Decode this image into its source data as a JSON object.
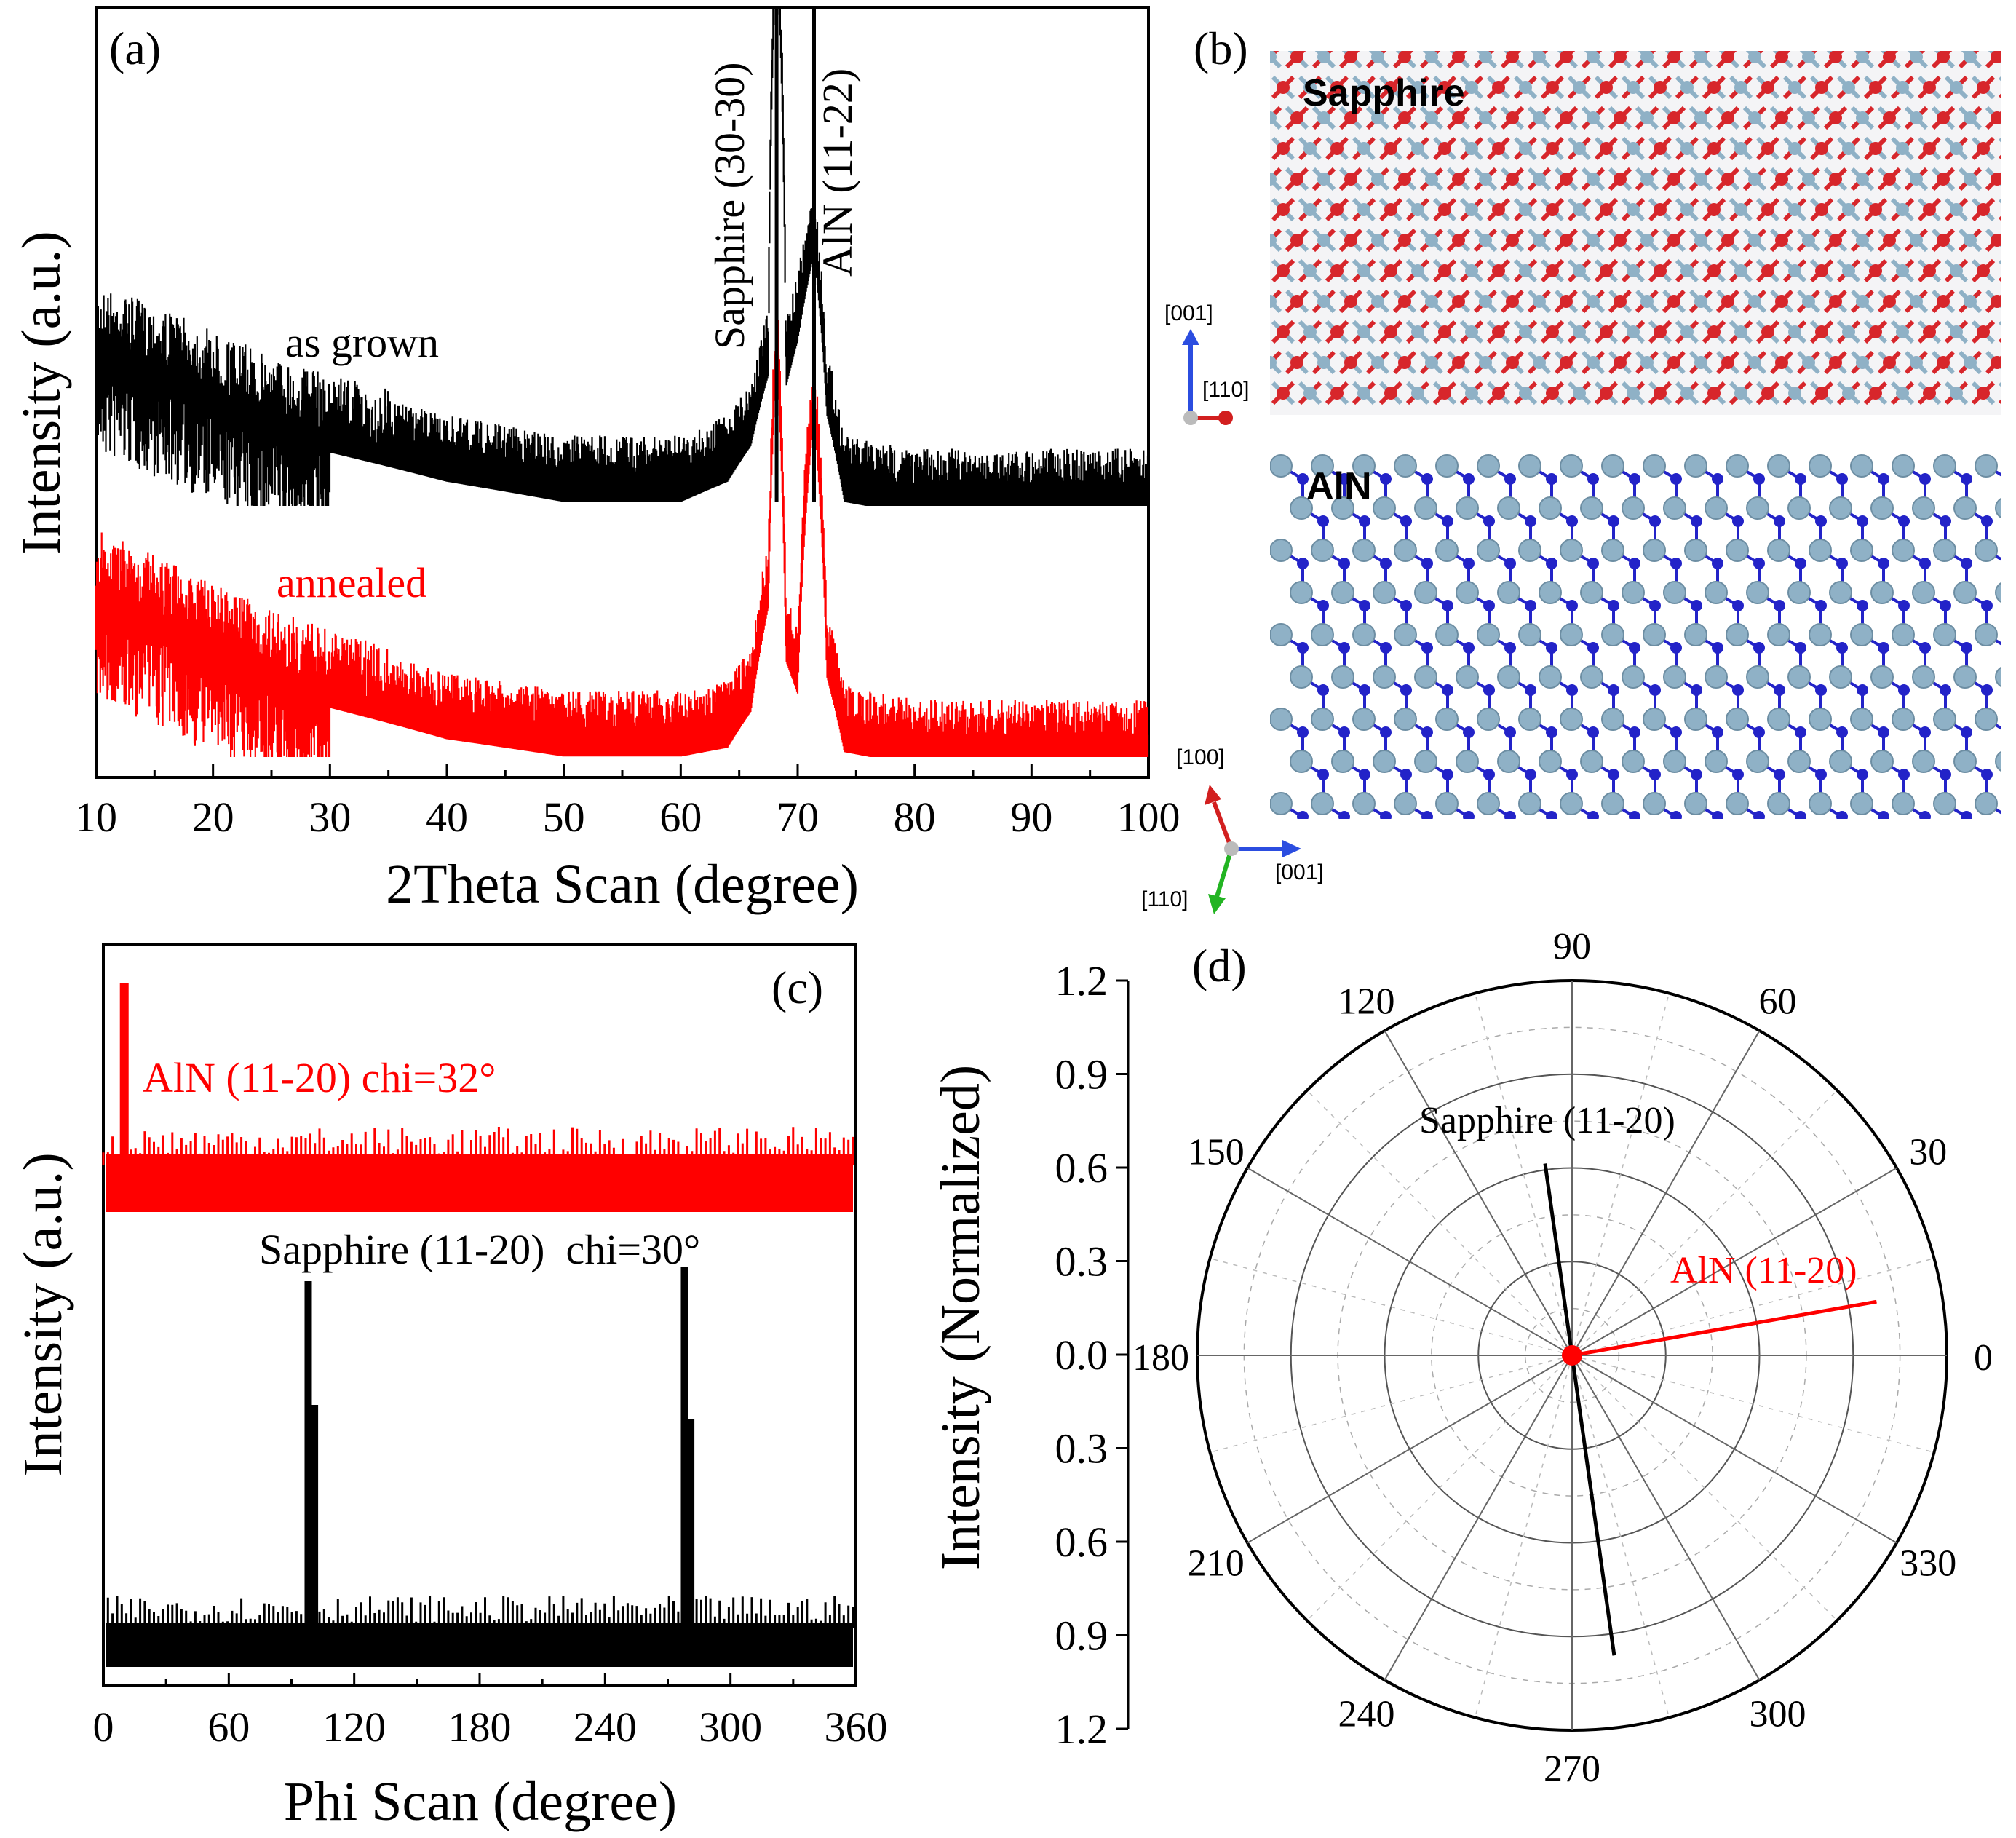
{
  "colors": {
    "black": "#000000",
    "red": "#ff0000",
    "sapphire_O": "#d7262b",
    "al_atom": "#8fb1c6",
    "n_atom": "#2323c8",
    "axis_green": "#22b422"
  },
  "panel_a": {
    "label": "(a)",
    "ylabel": "Intensity (a.u.)",
    "xlabel": "2Theta Scan (degree)",
    "peak_label_sapphire": "Sapphire (30-30)",
    "peak_label_aln": "AlN (11-22)",
    "series_label_1": "as grown",
    "series_label_2": "annealed"
  },
  "panel_b": {
    "label": "(b)",
    "top_label": "Sapphire",
    "bottom_label": "AlN",
    "axes_top": {
      "up": "[001]",
      "right": "[110]"
    },
    "axes_bottom": {
      "up": "[100]",
      "right": "[001]",
      "down": "[110]"
    }
  },
  "panel_c": {
    "label": "(c)",
    "ylabel": "Intensity (a.u.)",
    "xlabel": "Phi Scan (degree)",
    "series_label_1": "AlN (11-20) chi=32°",
    "series_label_2": "Sapphire (11-20)  chi=30°"
  },
  "panel_d": {
    "label": "(d)",
    "ylabel": "Intensity (Normalized)",
    "label_sapphire": "Sapphire (11-20)",
    "label_aln": "AlN (11-20)"
  },
  "chart_data": [
    {
      "type": "line",
      "panel": "a",
      "xlabel": "2Theta Scan (degree)",
      "ylabel": "Intensity (a.u.)",
      "xlim": [
        10,
        100
      ],
      "xticks": [
        10,
        20,
        30,
        40,
        50,
        60,
        70,
        80,
        90,
        100
      ],
      "y_scale": "log (arbitrary units, no tick labels)",
      "peaks": [
        {
          "name": "Sapphire (30-30)",
          "x": 68.2
        },
        {
          "name": "AlN (11-22)",
          "x": 71.4
        }
      ],
      "series": [
        {
          "name": "as grown",
          "color": "#000000",
          "x": [
            10,
            15,
            20,
            25,
            30,
            40,
            50,
            60,
            64,
            66,
            67.5,
            68.2,
            69,
            70,
            71.4,
            72.5,
            74,
            80,
            90,
            100
          ],
          "y": [
            1.0,
            0.92,
            0.82,
            0.74,
            0.68,
            0.6,
            0.55,
            0.55,
            0.6,
            0.7,
            0.95,
            6.0,
            0.9,
            1.1,
            1.6,
            0.8,
            0.55,
            0.52,
            0.52,
            0.52
          ]
        },
        {
          "name": "annealed",
          "color": "#ff0000",
          "x": [
            10,
            15,
            20,
            25,
            30,
            40,
            50,
            60,
            64,
            66,
            67.5,
            68.2,
            69,
            70,
            71.4,
            72.5,
            74,
            80,
            90,
            100
          ],
          "y": [
            1.0,
            0.9,
            0.8,
            0.72,
            0.66,
            0.58,
            0.54,
            0.54,
            0.56,
            0.65,
            1.0,
            2.8,
            0.8,
            0.7,
            2.2,
            0.75,
            0.55,
            0.52,
            0.52,
            0.52
          ]
        }
      ]
    },
    {
      "type": "line",
      "panel": "c",
      "xlabel": "Phi Scan (degree)",
      "ylabel": "Intensity (a.u.)",
      "xlim": [
        0,
        360
      ],
      "xticks": [
        0,
        60,
        120,
        180,
        240,
        300,
        360
      ],
      "series": [
        {
          "name": "AlN (11-20) chi=32°",
          "color": "#ff0000",
          "peaks_x": [
            10
          ],
          "peak_height": 1.0,
          "baseline": 0.12
        },
        {
          "name": "Sapphire (11-20)  chi=30°",
          "color": "#000000",
          "peaks_x": [
            98,
            101,
            278,
            281
          ],
          "peak_heights": [
            0.85,
            0.55,
            0.92,
            0.55
          ],
          "baseline": 0.08
        }
      ]
    },
    {
      "type": "polar",
      "panel": "d",
      "ylabel": "Intensity (Normalized)",
      "radial_ticks": [
        0.0,
        0.3,
        0.6,
        0.9,
        1.2
      ],
      "rlim": [
        0,
        1.2
      ],
      "angular_ticks": [
        0,
        30,
        60,
        90,
        120,
        150,
        180,
        210,
        240,
        270,
        300,
        330
      ],
      "series": [
        {
          "name": "Sapphire (11-20)",
          "color": "#000000",
          "points": [
            {
              "theta": 98,
              "r": 0.62
            },
            {
              "theta": 278,
              "r": 0.97
            }
          ]
        },
        {
          "name": "AlN (11-20)",
          "color": "#ff0000",
          "points": [
            {
              "theta": 10,
              "r": 0.99
            }
          ]
        }
      ]
    }
  ]
}
